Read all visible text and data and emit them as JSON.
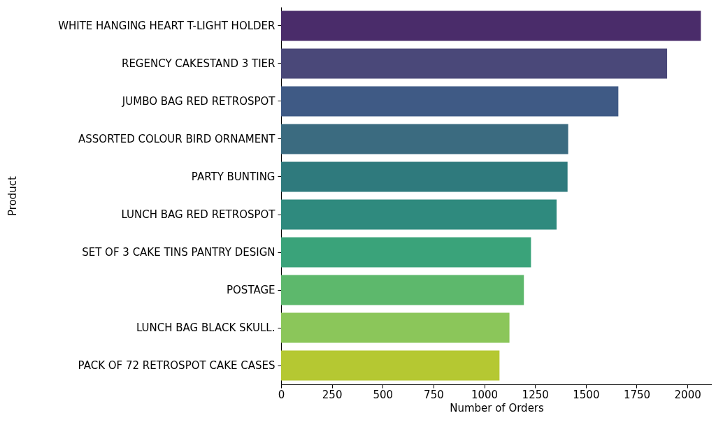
{
  "chart_data": {
    "type": "bar",
    "orientation": "horizontal",
    "xlabel": "Number of Orders",
    "ylabel": "Product",
    "categories": [
      "WHITE HANGING HEART T-LIGHT HOLDER",
      "REGENCY CAKESTAND 3 TIER",
      "JUMBO BAG RED RETROSPOT",
      "ASSORTED COLOUR BIRD ORNAMENT",
      "PARTY BUNTING",
      "LUNCH BAG RED RETROSPOT",
      "SET OF 3 CAKE TINS PANTRY DESIGN ",
      "POSTAGE",
      "LUNCH BAG  BLACK SKULL.",
      "PACK OF 72 RETROSPOT CAKE CASES"
    ],
    "values": [
      2066,
      1900,
      1660,
      1413,
      1410,
      1356,
      1230,
      1195,
      1124,
      1075
    ],
    "colors": [
      "#4a2c6a",
      "#4a4879",
      "#3f5a85",
      "#3b6b80",
      "#2f7a7d",
      "#2f8a7e",
      "#3aa37a",
      "#5db86c",
      "#8bc65a",
      "#b5c832"
    ],
    "xlim": [
      0,
      2120
    ],
    "xticks": [
      0,
      250,
      500,
      750,
      1000,
      1250,
      1500,
      1750,
      2000
    ],
    "grid": false,
    "legend": false
  }
}
